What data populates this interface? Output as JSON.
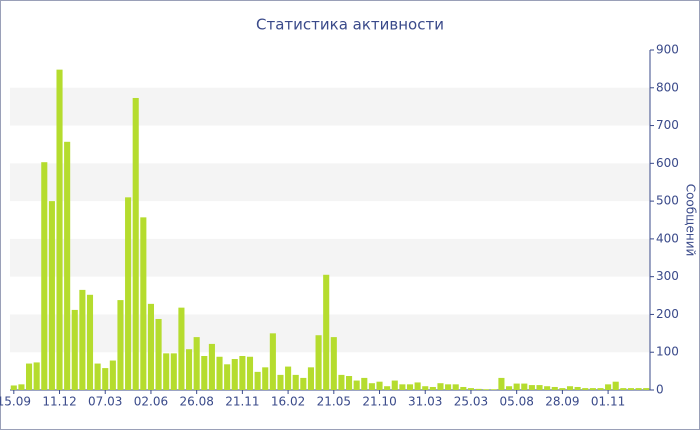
{
  "chart_data": {
    "type": "bar",
    "title": "Статистика активности",
    "y_label": "Сообщений",
    "categories": [
      "15.09",
      null,
      null,
      null,
      null,
      null,
      "11.12",
      null,
      null,
      null,
      null,
      null,
      "07.03",
      null,
      null,
      null,
      null,
      null,
      "02.06",
      null,
      null,
      null,
      null,
      null,
      "26.08",
      null,
      null,
      null,
      null,
      null,
      "21.11",
      null,
      null,
      null,
      null,
      null,
      "16.02",
      null,
      null,
      null,
      null,
      null,
      "21.05",
      null,
      null,
      null,
      null,
      null,
      "21.10",
      null,
      null,
      null,
      null,
      null,
      "31.03",
      null,
      null,
      null,
      null,
      null,
      "25.03",
      null,
      null,
      null,
      null,
      null,
      "05.08",
      null,
      null,
      null,
      null,
      null,
      "28.09",
      null,
      null,
      null,
      null,
      null,
      "01.11",
      null,
      null,
      null,
      null,
      null
    ],
    "values": [
      12,
      15,
      70,
      73,
      603,
      500,
      848,
      657,
      212,
      265,
      252,
      70,
      58,
      78,
      238,
      510,
      773,
      457,
      228,
      188,
      97,
      97,
      218,
      108,
      140,
      90,
      122,
      88,
      68,
      82,
      90,
      88,
      48,
      60,
      150,
      40,
      62,
      40,
      32,
      60,
      145,
      305,
      140,
      40,
      37,
      25,
      32,
      18,
      22,
      10,
      25,
      15,
      15,
      20,
      10,
      8,
      18,
      15,
      15,
      8,
      5,
      3,
      2,
      2,
      32,
      10,
      17,
      17,
      13,
      13,
      10,
      8,
      5,
      10,
      8,
      5,
      5,
      5,
      15,
      22,
      5,
      5,
      5,
      5
    ],
    "color": "#b5dc2e",
    "ylim": [
      0,
      900
    ],
    "yticks": [
      0,
      100,
      200,
      300,
      400,
      500,
      600,
      700,
      800,
      900
    ],
    "y_axis_side": "right",
    "bands": true
  }
}
